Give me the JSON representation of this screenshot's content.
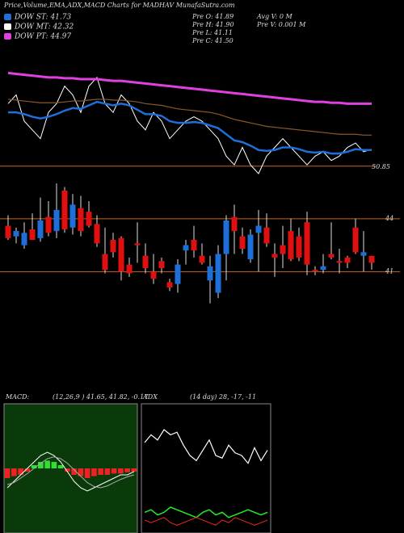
{
  "header": {
    "title": "Price,Volume,EMA,ADX,MACD Charts for MADHAV MunafaSutra.com",
    "legend": [
      {
        "text": "DOW ST: 41.73",
        "color": "#1e6fd9"
      },
      {
        "text": "DOW MT: 42.32",
        "color": "#ffffff"
      },
      {
        "text": "DOW PT: 44.97",
        "color": "#e040e0"
      }
    ],
    "info": [
      "Pre  O: 41.89",
      "Pre  H: 41.90",
      "Pre  L: 41.11",
      "Pre  C: 41.50",
      "Avg V: 0  M",
      "Pre  V: 0.001 M"
    ]
  },
  "chart_data": [
    {
      "type": "line",
      "ylim": [
        50,
        62
      ],
      "yticks": [
        {
          "value": 50.85,
          "label": "50.85"
        }
      ],
      "series": [
        {
          "name": "Price",
          "color": "#ffffff",
          "width": 1,
          "values": [
            58,
            59,
            56,
            55,
            54,
            57,
            58,
            60,
            59,
            57,
            60,
            61,
            58,
            57,
            59,
            58,
            56,
            55,
            57,
            56,
            54,
            55,
            56,
            56.5,
            56,
            55,
            54,
            52,
            51,
            53,
            51,
            50,
            52,
            53,
            54,
            53,
            52,
            51,
            52,
            52.5,
            51.5,
            52,
            53,
            53.5,
            52.5,
            52.8
          ]
        },
        {
          "name": "DOW ST",
          "color": "#1e6fd9",
          "width": 2.5,
          "values": [
            57,
            57,
            56.8,
            56.5,
            56.3,
            56.5,
            56.8,
            57.2,
            57.5,
            57.4,
            57.8,
            58.2,
            58,
            57.8,
            58,
            57.8,
            57.3,
            56.8,
            56.8,
            56.6,
            56,
            55.8,
            55.8,
            55.9,
            55.8,
            55.5,
            55.2,
            54.5,
            53.8,
            53.6,
            53.2,
            52.7,
            52.6,
            52.7,
            53,
            53,
            52.8,
            52.5,
            52.4,
            52.5,
            52.3,
            52.3,
            52.5,
            52.8,
            52.7,
            52.7
          ]
        },
        {
          "name": "DOW MT",
          "color": "#8b5a2b",
          "width": 1.2,
          "values": [
            58.5,
            58.4,
            58.3,
            58.2,
            58.1,
            58.1,
            58.1,
            58.2,
            58.3,
            58.3,
            58.4,
            58.5,
            58.5,
            58.4,
            58.4,
            58.3,
            58.2,
            58.0,
            57.9,
            57.8,
            57.6,
            57.4,
            57.3,
            57.2,
            57.1,
            57.0,
            56.8,
            56.5,
            56.2,
            56.0,
            55.8,
            55.6,
            55.4,
            55.3,
            55.2,
            55.1,
            55.0,
            54.9,
            54.8,
            54.7,
            54.6,
            54.5,
            54.5,
            54.5,
            54.4,
            54.4
          ]
        },
        {
          "name": "DOW PT",
          "color": "#e040e0",
          "width": 3,
          "values": [
            61.5,
            61.4,
            61.3,
            61.2,
            61.1,
            61.0,
            61.0,
            60.9,
            60.9,
            60.8,
            60.8,
            60.8,
            60.7,
            60.6,
            60.6,
            60.5,
            60.4,
            60.3,
            60.2,
            60.1,
            60.0,
            59.9,
            59.8,
            59.7,
            59.6,
            59.5,
            59.4,
            59.3,
            59.2,
            59.1,
            59.0,
            58.9,
            58.8,
            58.7,
            58.6,
            58.5,
            58.4,
            58.3,
            58.2,
            58.2,
            58.1,
            58.1,
            58.0,
            58.0,
            58.0,
            58.0
          ]
        }
      ]
    },
    {
      "type": "candlestick",
      "ylim": [
        39,
        46.1
      ],
      "yticks": [
        44,
        41
      ],
      "up_color": "#1e6fd9",
      "down_color": "#e01010",
      "open": [
        43.6,
        43.0,
        42.5,
        43.4,
        42.9,
        44.1,
        43.3,
        45.6,
        43.5,
        44.6,
        44.4,
        43.7,
        42.0,
        42.8,
        42.9,
        41.4,
        42.6,
        41.9,
        41.0,
        41.6,
        40.4,
        40.3,
        42.2,
        42.8,
        41.9,
        40.5,
        39.8,
        42.0,
        44.1,
        43.0,
        41.7,
        43.2,
        43.5,
        42.0,
        42.5,
        43.3,
        43.0,
        43.8,
        41.1,
        41.1,
        42.0,
        41.6,
        41.8,
        43.5,
        41.9,
        41.89
      ],
      "high": [
        44.2,
        43.5,
        43.8,
        44.3,
        45.2,
        45.0,
        46.0,
        45.8,
        45.4,
        45.3,
        45.0,
        44.2,
        43.5,
        43.2,
        43.0,
        41.8,
        43.8,
        42.6,
        42.0,
        41.8,
        40.6,
        41.7,
        42.8,
        43.6,
        42.6,
        41.9,
        42.5,
        44.2,
        44.8,
        43.5,
        43.4,
        44.5,
        44.3,
        42.6,
        43.6,
        44.0,
        43.5,
        44.4,
        41.3,
        42.0,
        43.8,
        42.3,
        41.9,
        44.0,
        43.3,
        41.9
      ],
      "low": [
        42.8,
        42.6,
        42.3,
        42.8,
        42.7,
        43.0,
        42.9,
        43.2,
        43.1,
        43.0,
        43.5,
        42.4,
        40.9,
        41.8,
        40.5,
        40.7,
        41.5,
        40.9,
        40.3,
        40.9,
        39.9,
        39.8,
        41.4,
        41.8,
        41.4,
        39.2,
        39.5,
        40.5,
        42.0,
        42.0,
        41.5,
        41.0,
        42.4,
        40.7,
        41.2,
        41.6,
        41.6,
        40.8,
        40.8,
        40.9,
        41.7,
        40.9,
        41.2,
        42.0,
        41.0,
        41.11
      ],
      "close": [
        42.9,
        43.3,
        43.2,
        42.8,
        43.9,
        43.2,
        44.5,
        43.4,
        44.8,
        43.3,
        43.6,
        42.6,
        41.1,
        42.1,
        41.0,
        40.9,
        42.5,
        41.2,
        40.6,
        41.2,
        40.1,
        41.4,
        42.5,
        42.2,
        41.5,
        41.3,
        42.0,
        43.9,
        43.3,
        42.3,
        43.1,
        43.6,
        42.6,
        41.8,
        42.0,
        41.7,
        41.8,
        41.4,
        41.0,
        41.3,
        41.8,
        41.5,
        41.5,
        42.1,
        42.1,
        41.5
      ]
    },
    {
      "type": "macd",
      "title": "MACD:",
      "subtitle": "(12,26,9 ) 41.65, 41.82, -0.17",
      "ylim": [
        -1,
        1
      ],
      "series": [
        {
          "name": "MACD",
          "color": "#ffffff",
          "values": [
            -0.3,
            -0.2,
            -0.1,
            0.0,
            0.1,
            0.2,
            0.25,
            0.2,
            0.1,
            -0.05,
            -0.2,
            -0.3,
            -0.35,
            -0.3,
            -0.25,
            -0.2,
            -0.15,
            -0.1,
            -0.1,
            -0.05
          ]
        },
        {
          "name": "Signal",
          "color": "#aaaaaa",
          "values": [
            -0.25,
            -0.22,
            -0.15,
            -0.08,
            0.0,
            0.08,
            0.15,
            0.18,
            0.15,
            0.08,
            -0.02,
            -0.12,
            -0.22,
            -0.28,
            -0.3,
            -0.27,
            -0.22,
            -0.17,
            -0.13,
            -0.1
          ]
        }
      ],
      "histogram": [
        -0.15,
        -0.12,
        -0.1,
        -0.05,
        0.05,
        0.1,
        0.12,
        0.1,
        0.05,
        -0.05,
        -0.1,
        -0.12,
        -0.15,
        -0.12,
        -0.1,
        -0.1,
        -0.08,
        -0.08,
        -0.06,
        -0.05
      ],
      "up_color": "#33dd33",
      "down_color": "#ee2222"
    },
    {
      "type": "line",
      "title": "ADX",
      "subtitle": "(14 day) 28, -17, -11",
      "ylim": [
        0,
        50
      ],
      "series": [
        {
          "name": "ADX",
          "color": "#ffffff",
          "width": 1.2,
          "values": [
            35,
            38,
            36,
            40,
            38,
            39,
            34,
            30,
            28,
            32,
            36,
            30,
            29,
            34,
            31,
            30,
            27,
            33,
            28,
            32
          ]
        },
        {
          "name": "+DI",
          "color": "#22ee22",
          "width": 1.5,
          "values": [
            8,
            9,
            7,
            8,
            10,
            9,
            8,
            7,
            6,
            8,
            9,
            7,
            8,
            6,
            7,
            8,
            9,
            8,
            7,
            8
          ]
        },
        {
          "name": "-DI",
          "color": "#ee2222",
          "width": 1,
          "values": [
            5,
            4,
            5,
            6,
            4,
            3,
            4,
            5,
            6,
            5,
            4,
            3,
            5,
            4,
            6,
            5,
            4,
            3,
            4,
            5
          ]
        }
      ]
    }
  ]
}
